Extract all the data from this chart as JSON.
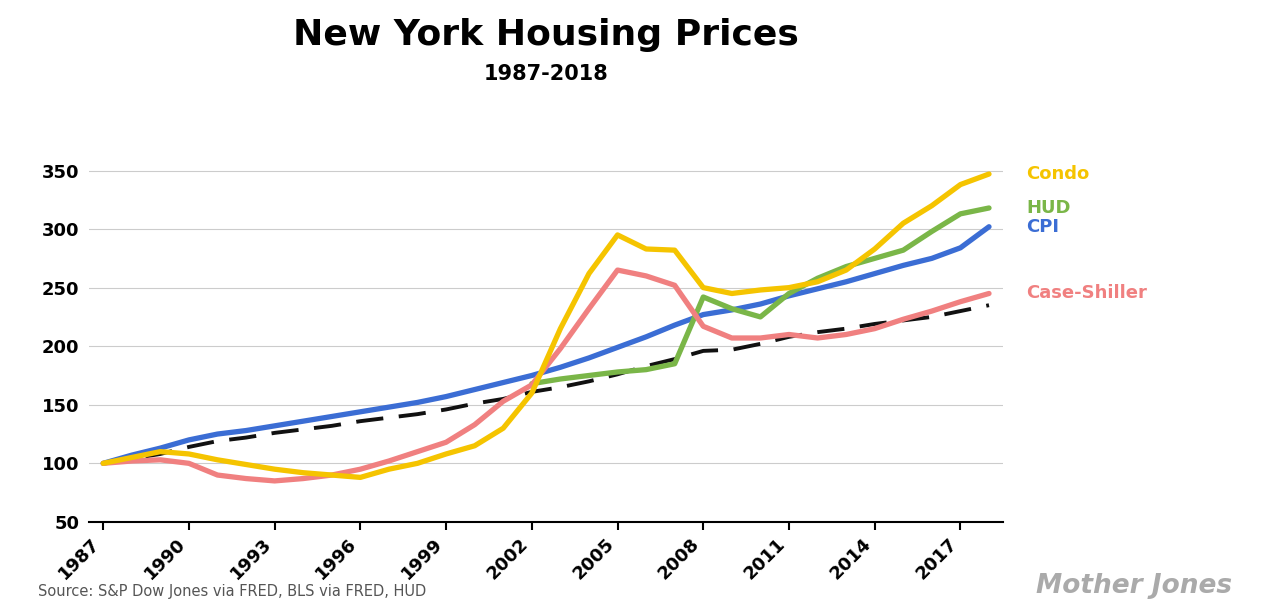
{
  "title": "New York Housing Prices",
  "subtitle": "1987-2018",
  "source": "Source: S&P Dow Jones via FRED, BLS via FRED, HUD",
  "watermark": "Mother Jones",
  "years": [
    1987,
    1988,
    1989,
    1990,
    1991,
    1992,
    1993,
    1994,
    1995,
    1996,
    1997,
    1998,
    1999,
    2000,
    2001,
    2002,
    2003,
    2004,
    2005,
    2006,
    2007,
    2008,
    2009,
    2010,
    2011,
    2012,
    2013,
    2014,
    2015,
    2016,
    2017,
    2018
  ],
  "condo": [
    100,
    105,
    110,
    108,
    103,
    99,
    95,
    92,
    90,
    88,
    95,
    100,
    108,
    115,
    130,
    160,
    215,
    262,
    295,
    283,
    282,
    250,
    245,
    248,
    250,
    255,
    265,
    283,
    305,
    320,
    338,
    347
  ],
  "hud": [
    null,
    null,
    null,
    null,
    null,
    null,
    null,
    null,
    null,
    null,
    null,
    null,
    null,
    null,
    null,
    168,
    172,
    175,
    178,
    180,
    185,
    242,
    232,
    225,
    245,
    258,
    268,
    275,
    282,
    298,
    313,
    318
  ],
  "cpi": [
    100,
    107,
    113,
    120,
    125,
    128,
    132,
    136,
    140,
    144,
    148,
    152,
    157,
    163,
    169,
    175,
    182,
    190,
    199,
    208,
    218,
    227,
    231,
    236,
    243,
    249,
    255,
    262,
    269,
    275,
    284,
    302
  ],
  "case_shiller": [
    100,
    102,
    103,
    100,
    90,
    87,
    85,
    87,
    90,
    95,
    102,
    110,
    118,
    133,
    153,
    167,
    198,
    232,
    265,
    260,
    252,
    217,
    207,
    207,
    210,
    207,
    210,
    215,
    223,
    230,
    238,
    245
  ],
  "inflation": [
    100,
    104,
    108,
    114,
    119,
    122,
    126,
    129,
    132,
    136,
    139,
    142,
    146,
    151,
    155,
    161,
    165,
    170,
    176,
    183,
    189,
    196,
    197,
    202,
    208,
    212,
    215,
    219,
    222,
    225,
    230,
    235
  ],
  "colors": {
    "condo": "#f5c400",
    "hud": "#7ab648",
    "cpi": "#3b6dd4",
    "case_shiller": "#f08080",
    "inflation": "#111111"
  },
  "ylim": [
    50,
    375
  ],
  "yticks": [
    50,
    100,
    150,
    200,
    250,
    300,
    350
  ],
  "xticks": [
    1987,
    1990,
    1993,
    1996,
    1999,
    2002,
    2005,
    2008,
    2011,
    2014,
    2017
  ],
  "background_color": "#ffffff"
}
